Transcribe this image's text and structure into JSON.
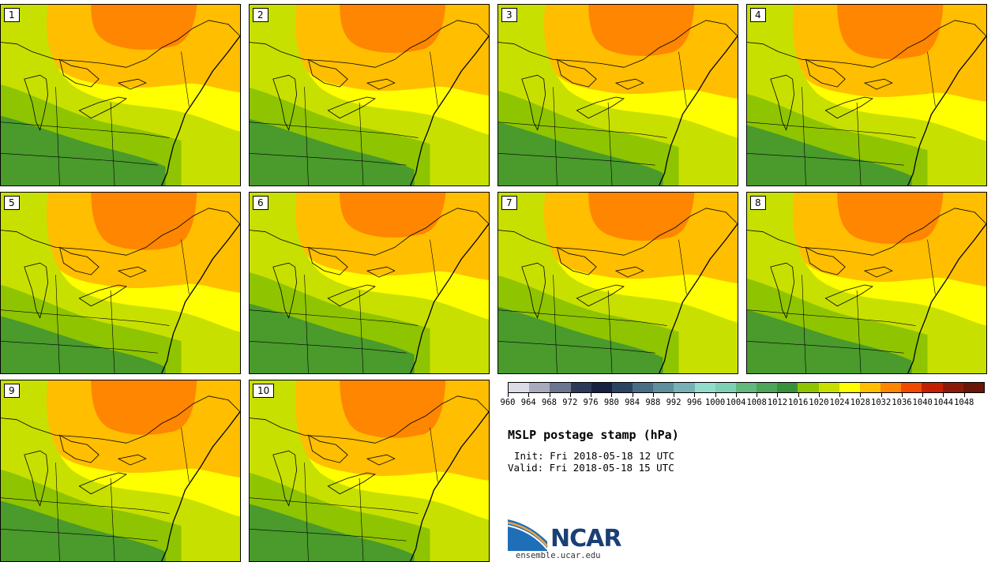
{
  "panels": [
    {
      "label": "1"
    },
    {
      "label": "2"
    },
    {
      "label": "3"
    },
    {
      "label": "4"
    },
    {
      "label": "5"
    },
    {
      "label": "6"
    },
    {
      "label": "7"
    },
    {
      "label": "8"
    },
    {
      "label": "9"
    },
    {
      "label": "10"
    }
  ],
  "zone_colors": {
    "p1036": "#ff8600",
    "p1032": "#ffbe00",
    "p1028": "#ffff00",
    "p1024": "#c8e000",
    "p1020": "#8fc400",
    "p1016": "#4a9a2c",
    "p1012": "#3a8f3a",
    "line": "#000000"
  },
  "colorbar": {
    "colors": [
      "#dcdce8",
      "#a8aabd",
      "#6c7590",
      "#2b3a59",
      "#16223f",
      "#2b4561",
      "#4a6d86",
      "#5f8e9c",
      "#77b0b5",
      "#92dccb",
      "#7ed0b4",
      "#63b77f",
      "#4ca559",
      "#3a8f3a",
      "#8fc400",
      "#c8e000",
      "#ffff00",
      "#ffbe00",
      "#ff8600",
      "#f04a00",
      "#c32000",
      "#8c1a0a",
      "#6a1608"
    ],
    "labels": [
      "960",
      "964",
      "968",
      "972",
      "976",
      "980",
      "984",
      "988",
      "992",
      "996",
      "1000",
      "1004",
      "1008",
      "1012",
      "1016",
      "1020",
      "1024",
      "1028",
      "1032",
      "1036",
      "1040",
      "1044",
      "1048"
    ]
  },
  "info": {
    "title": "MSLP postage stamp (hPa)",
    "init": "Init: Fri 2018-05-18 12 UTC",
    "valid": "Valid: Fri 2018-05-18 15 UTC"
  },
  "logo": {
    "text": "NCAR",
    "site": "ensemble.ucar.edu"
  }
}
